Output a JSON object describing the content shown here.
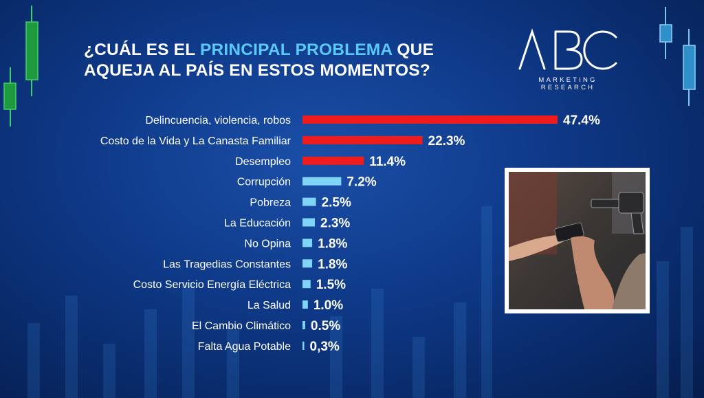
{
  "title": {
    "part1": "¿CUÁL ES EL ",
    "highlight": "PRINCIPAL PROBLEMA",
    "part2": " QUE AQUEJA AL PAÍS EN ESTOS MOMENTOS?"
  },
  "logo": {
    "line1": "MARKETING",
    "line2": "RESEARCH"
  },
  "colors": {
    "top": "#ee1c1c",
    "rest": "#7fd4f7",
    "highlight": "#5cc8f5"
  },
  "chart_data": {
    "type": "bar",
    "orientation": "horizontal",
    "categories": [
      "Delincuencia, violencia, robos",
      "Costo de la Vida y La Canasta Familiar",
      "Desempleo",
      "Corrupción",
      "Pobreza",
      "La Educación",
      "No Opina",
      "Las Tragedias Constantes",
      "Costo Servicio Energía Eléctrica",
      "La Salud",
      "El Cambio Climático",
      "Falta Agua Potable"
    ],
    "values": [
      47.4,
      22.3,
      11.4,
      7.2,
      2.5,
      2.3,
      1.8,
      1.8,
      1.5,
      1.0,
      0.5,
      0.3
    ],
    "value_labels": [
      "47.4%",
      "22.3%",
      "11.4%",
      "7.2%",
      "2.5%",
      "2.3%",
      "1.8%",
      "1.8%",
      "1.5%",
      "1.0%",
      "0.5%",
      "0,3%"
    ],
    "highlight_top_n": 3,
    "grid": false,
    "legend": "none"
  }
}
